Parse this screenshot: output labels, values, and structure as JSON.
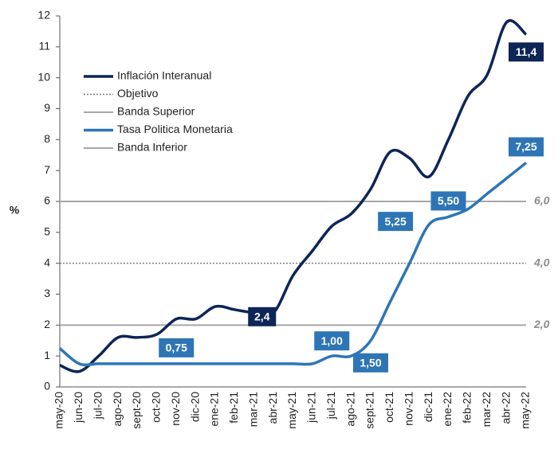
{
  "chart_data": {
    "type": "line",
    "y_axis_label": "%",
    "categories": [
      "may-20",
      "jun-20",
      "jul-20",
      "ago-20",
      "sept-20",
      "oct-20",
      "nov-20",
      "dic-20",
      "ene-21",
      "feb-21",
      "mar-21",
      "abr-21",
      "may-21",
      "jun-21",
      "jul-21",
      "ago-21",
      "sept-21",
      "oct-21",
      "nov-21",
      "dic-21",
      "ene-22",
      "feb-22",
      "mar-22",
      "abr-22",
      "may-22"
    ],
    "series": [
      {
        "name": "Inflación Interanual",
        "color": "#0d2557",
        "style": "solid",
        "values": [
          0.7,
          0.5,
          1.0,
          1.6,
          1.6,
          1.7,
          2.2,
          2.2,
          2.6,
          2.5,
          2.4,
          2.4,
          3.6,
          4.4,
          5.2,
          5.6,
          6.4,
          7.6,
          7.4,
          6.8,
          8.0,
          9.4,
          10.1,
          11.8,
          11.4
        ],
        "value_labels": [
          null,
          null,
          null,
          null,
          null,
          null,
          null,
          null,
          null,
          null,
          "2,4",
          null,
          null,
          null,
          null,
          null,
          null,
          null,
          null,
          null,
          null,
          null,
          null,
          null,
          "11,4"
        ]
      },
      {
        "name": "Objetivo",
        "color": "#7f7f7f",
        "style": "dotted",
        "value": 4,
        "label": "4,0"
      },
      {
        "name": "Banda Superior",
        "color": "#a6a6a6",
        "style": "solid",
        "value": 6,
        "label": "6,0"
      },
      {
        "name": "Tasa Politica Monetaria",
        "color": "#2e75b6",
        "style": "solid",
        "values": [
          1.25,
          0.75,
          0.75,
          0.75,
          0.75,
          0.75,
          0.75,
          0.75,
          0.75,
          0.75,
          0.75,
          0.75,
          0.75,
          0.75,
          1.0,
          1.0,
          1.5,
          2.75,
          4.0,
          5.25,
          5.5,
          5.75,
          6.25,
          6.75,
          7.25
        ],
        "value_labels": [
          null,
          null,
          null,
          null,
          null,
          null,
          "0,75",
          null,
          null,
          null,
          null,
          null,
          null,
          null,
          "1,00",
          null,
          "1,50",
          null,
          null,
          "5,25",
          "5,50",
          null,
          null,
          null,
          "7,25"
        ]
      },
      {
        "name": "Banda Inferior",
        "color": "#a6a6a6",
        "style": "solid",
        "value": 2,
        "label": "2,0"
      }
    ],
    "ylim": [
      0,
      12
    ],
    "yticks": [
      0,
      1,
      2,
      3,
      4,
      5,
      6,
      7,
      8,
      9,
      10,
      11,
      12
    ]
  }
}
